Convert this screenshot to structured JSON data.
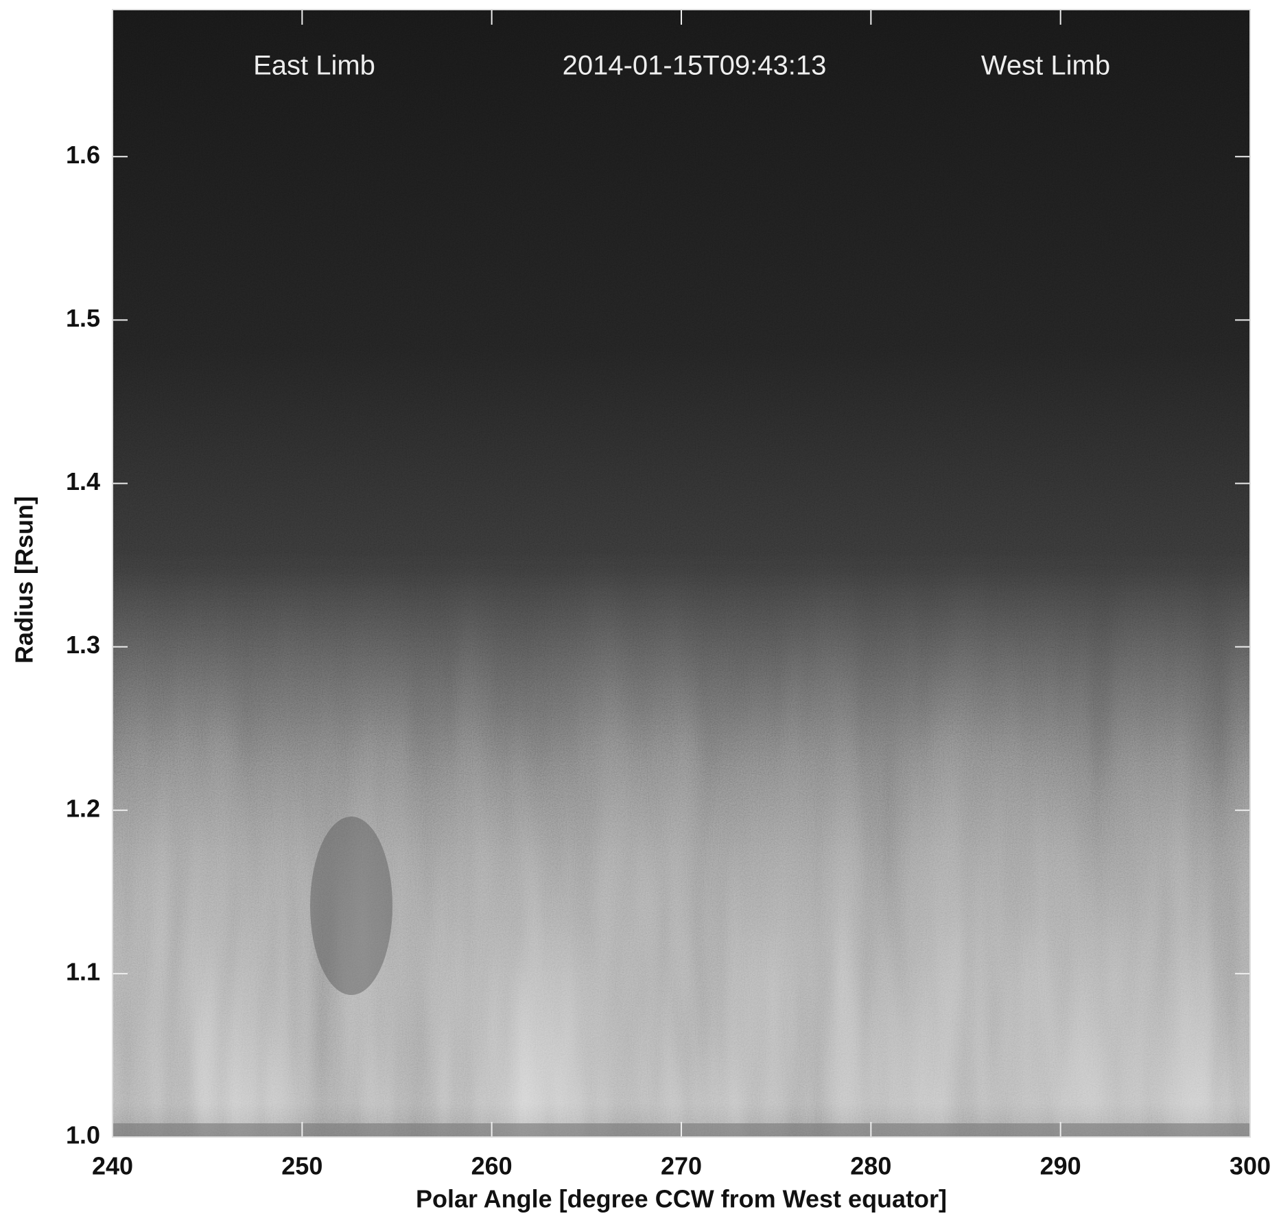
{
  "chart_data": {
    "type": "image",
    "annotations": [
      "East Limb",
      "2014-01-15T09:43:13",
      "West Limb"
    ],
    "xlabel": "Polar Angle [degree CCW from West equator]",
    "ylabel": "Radius [Rsun]",
    "xlim": [
      240,
      300
    ],
    "xticks": [
      240,
      250,
      260,
      270,
      280,
      290,
      300
    ],
    "ylim": [
      1.0,
      1.69
    ],
    "yticks": [
      {
        "value": 1,
        "label": "1.0"
      },
      1.1,
      1.2,
      1.3,
      1.4,
      1.5,
      1.6
    ],
    "colormap": "gray"
  }
}
